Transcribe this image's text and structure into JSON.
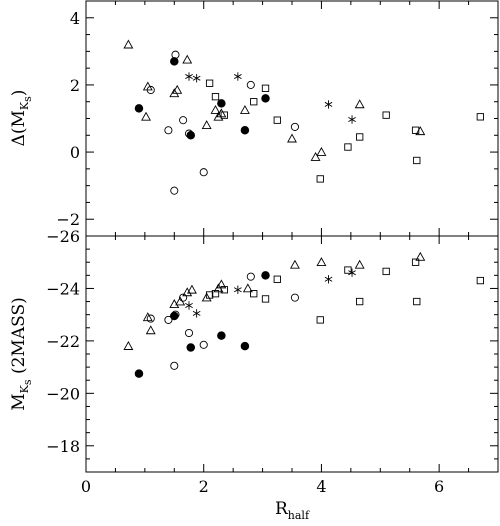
{
  "chart_data": [
    {
      "type": "scatter",
      "panel": "top",
      "xlim": [
        0,
        7
      ],
      "ylim": [
        -2.5,
        4.5
      ],
      "yticks": [
        -2,
        0,
        2,
        4
      ],
      "ytick_labels": [
        "−2",
        "0",
        "2",
        "4"
      ],
      "ylabel": {
        "prefix": "Δ(M",
        "sub": "K",
        "subsub": "s",
        "suffix": ")"
      },
      "series": [
        {
          "marker": "triangle",
          "points": [
            [
              0.72,
              3.2
            ],
            [
              1.05,
              1.95
            ],
            [
              1.02,
              1.05
            ],
            [
              1.5,
              1.75
            ],
            [
              1.55,
              1.85
            ],
            [
              1.72,
              2.75
            ],
            [
              2.05,
              0.8
            ],
            [
              2.2,
              1.25
            ],
            [
              2.25,
              1.05
            ],
            [
              2.3,
              1.15
            ],
            [
              2.7,
              1.25
            ],
            [
              3.5,
              0.4
            ],
            [
              3.9,
              -0.15
            ],
            [
              4.0,
              0.0
            ],
            [
              4.65,
              1.42
            ],
            [
              5.68,
              0.62
            ]
          ]
        },
        {
          "marker": "square",
          "points": [
            [
              2.1,
              2.05
            ],
            [
              2.2,
              1.65
            ],
            [
              2.35,
              1.1
            ],
            [
              2.85,
              1.5
            ],
            [
              3.05,
              1.9
            ],
            [
              3.25,
              0.95
            ],
            [
              3.98,
              -0.8
            ],
            [
              4.45,
              0.15
            ],
            [
              4.65,
              0.45
            ],
            [
              5.1,
              1.1
            ],
            [
              5.6,
              0.65
            ],
            [
              5.62,
              -0.25
            ],
            [
              6.7,
              1.05
            ]
          ]
        },
        {
          "marker": "open-circle",
          "points": [
            [
              1.1,
              1.85
            ],
            [
              1.4,
              0.65
            ],
            [
              1.5,
              -1.15
            ],
            [
              1.52,
              2.9
            ],
            [
              1.65,
              0.95
            ],
            [
              1.75,
              0.55
            ],
            [
              2.0,
              -0.6
            ],
            [
              2.8,
              2.0
            ],
            [
              3.55,
              0.75
            ]
          ]
        },
        {
          "marker": "filled-circle",
          "points": [
            [
              0.9,
              1.3
            ],
            [
              1.5,
              2.7
            ],
            [
              1.78,
              0.5
            ],
            [
              2.3,
              1.45
            ],
            [
              2.7,
              0.65
            ],
            [
              3.05,
              1.6
            ]
          ]
        },
        {
          "marker": "asterisk",
          "points": [
            [
              1.75,
              2.25
            ],
            [
              1.88,
              2.2
            ],
            [
              2.58,
              2.25
            ],
            [
              4.12,
              1.42
            ],
            [
              4.52,
              0.97
            ]
          ]
        }
      ]
    },
    {
      "type": "scatter",
      "panel": "bottom",
      "xlim": [
        0,
        7
      ],
      "ylim": [
        -17,
        -26
      ],
      "yticks": [
        -18,
        -20,
        -22,
        -24,
        -26
      ],
      "ytick_labels": [
        "−18",
        "−20",
        "−22",
        "−24",
        "−26"
      ],
      "xticks": [
        0,
        2,
        4,
        6
      ],
      "xtick_labels": [
        "0",
        "2",
        "4",
        "6"
      ],
      "xlabel": {
        "main": "R",
        "sub": "half"
      },
      "ylabel": {
        "prefix": "M",
        "sub": "K",
        "subsub": "s",
        "suffix": " (2MASS)"
      },
      "series": [
        {
          "marker": "triangle",
          "points": [
            [
              0.72,
              -21.8
            ],
            [
              1.05,
              -22.9
            ],
            [
              1.1,
              -22.4
            ],
            [
              1.5,
              -23.4
            ],
            [
              1.6,
              -23.5
            ],
            [
              1.72,
              -23.85
            ],
            [
              1.8,
              -23.95
            ],
            [
              2.05,
              -23.65
            ],
            [
              2.25,
              -24.0
            ],
            [
              2.3,
              -24.15
            ],
            [
              2.75,
              -24.0
            ],
            [
              3.55,
              -24.9
            ],
            [
              4.0,
              -25.0
            ],
            [
              4.65,
              -24.9
            ],
            [
              5.68,
              -25.2
            ]
          ]
        },
        {
          "marker": "square",
          "points": [
            [
              2.1,
              -23.75
            ],
            [
              2.2,
              -23.8
            ],
            [
              2.35,
              -23.95
            ],
            [
              2.85,
              -23.8
            ],
            [
              3.05,
              -23.6
            ],
            [
              3.25,
              -24.35
            ],
            [
              3.98,
              -22.8
            ],
            [
              4.45,
              -24.7
            ],
            [
              4.65,
              -23.5
            ],
            [
              5.1,
              -24.65
            ],
            [
              5.6,
              -25.0
            ],
            [
              5.62,
              -23.5
            ],
            [
              6.7,
              -24.3
            ]
          ]
        },
        {
          "marker": "open-circle",
          "points": [
            [
              1.1,
              -22.85
            ],
            [
              1.4,
              -22.8
            ],
            [
              1.5,
              -21.05
            ],
            [
              1.52,
              -23.0
            ],
            [
              1.65,
              -23.65
            ],
            [
              1.75,
              -22.3
            ],
            [
              2.0,
              -21.85
            ],
            [
              2.8,
              -24.45
            ],
            [
              3.55,
              -23.65
            ]
          ]
        },
        {
          "marker": "filled-circle",
          "points": [
            [
              0.9,
              -20.75
            ],
            [
              1.5,
              -22.95
            ],
            [
              1.78,
              -21.75
            ],
            [
              2.3,
              -22.2
            ],
            [
              2.7,
              -21.8
            ],
            [
              3.05,
              -24.5
            ]
          ]
        },
        {
          "marker": "asterisk",
          "points": [
            [
              1.75,
              -23.35
            ],
            [
              1.88,
              -23.05
            ],
            [
              2.58,
              -23.95
            ],
            [
              4.12,
              -24.35
            ],
            [
              4.52,
              -24.6
            ]
          ]
        }
      ]
    }
  ]
}
